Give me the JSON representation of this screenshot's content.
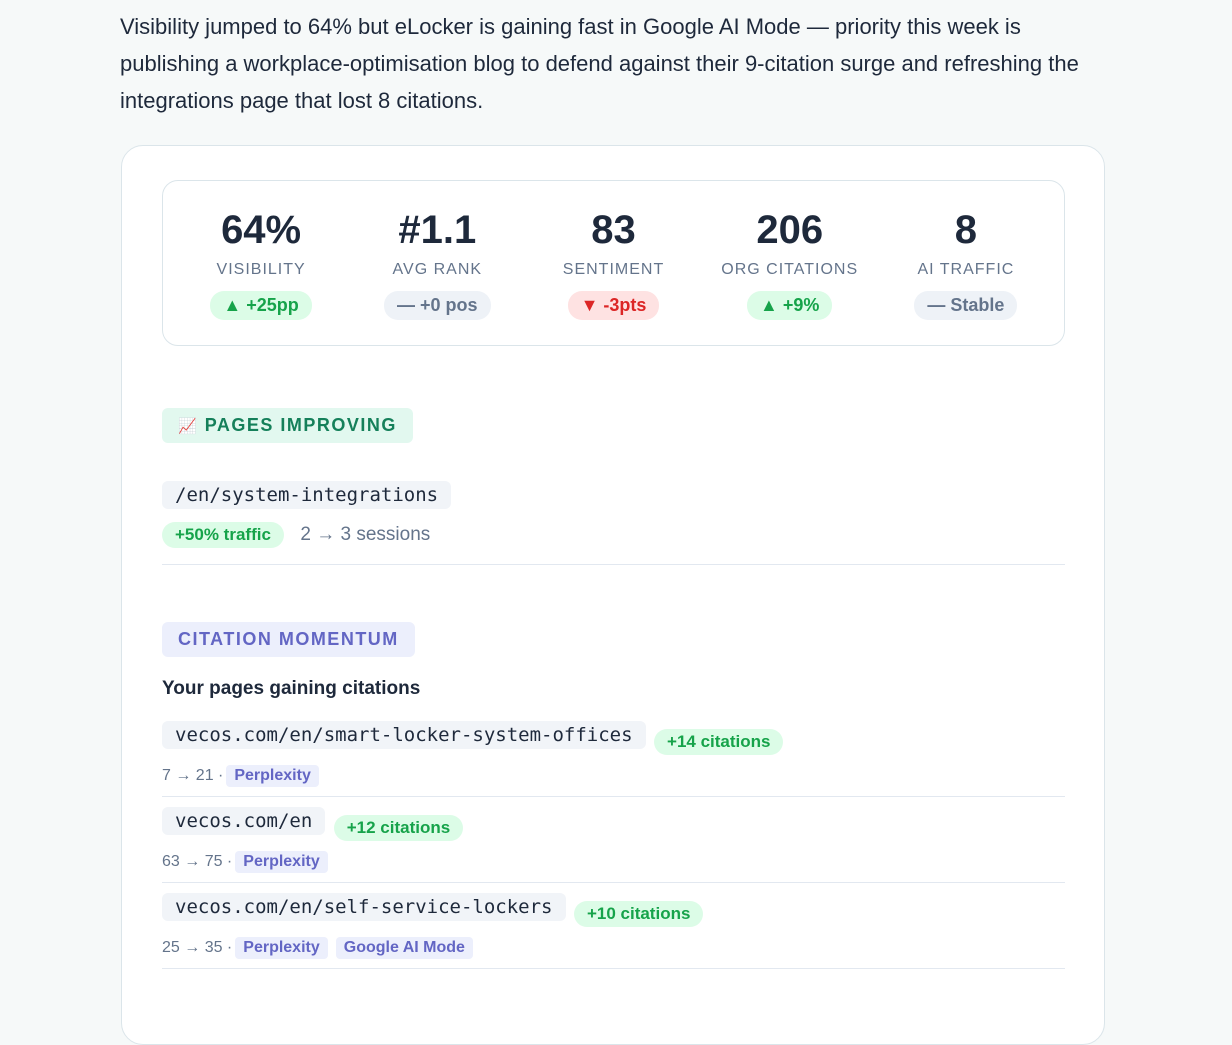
{
  "summary": "Visibility jumped to 64% but eLocker is gaining fast in Google AI Mode — priority this week is publishing a workplace-optimisation blog to defend against their 9-citation surge and refreshing the integrations page that lost 8 citations.",
  "stats": [
    {
      "value": "64%",
      "label": "VISIBILITY",
      "change": "▲ +25pp",
      "trend": "up"
    },
    {
      "value": "#1.1",
      "label": "AVG RANK",
      "change": "— +0 pos",
      "trend": "flat"
    },
    {
      "value": "83",
      "label": "SENTIMENT",
      "change": "▼ -3pts",
      "trend": "down"
    },
    {
      "value": "206",
      "label": "ORG CITATIONS",
      "change": "▲ +9%",
      "trend": "up"
    },
    {
      "value": "8",
      "label": "AI TRAFFIC",
      "change": "— Stable",
      "trend": "flat"
    }
  ],
  "pages_improving": {
    "icon": "chart-increasing-icon",
    "icon_glyph": "📈",
    "title": "PAGES IMPROVING",
    "items": [
      {
        "path": "/en/system-integrations",
        "change": "+50% traffic",
        "detail": "2 → 3 sessions"
      }
    ]
  },
  "citation_momentum": {
    "title": "CITATION MOMENTUM",
    "subtitle": "Your pages gaining citations",
    "items": [
      {
        "url": "vecos.com/en/smart-locker-system-offices",
        "change": "+14 citations",
        "range": "7 → 21 ·",
        "engines": [
          "Perplexity"
        ]
      },
      {
        "url": "vecos.com/en",
        "change": "+12 citations",
        "range": "63 → 75 ·",
        "engines": [
          "Perplexity"
        ]
      },
      {
        "url": "vecos.com/en/self-service-lockers",
        "change": "+10 citations",
        "range": "25 → 35 ·",
        "engines": [
          "Perplexity",
          "Google AI Mode"
        ]
      }
    ]
  }
}
